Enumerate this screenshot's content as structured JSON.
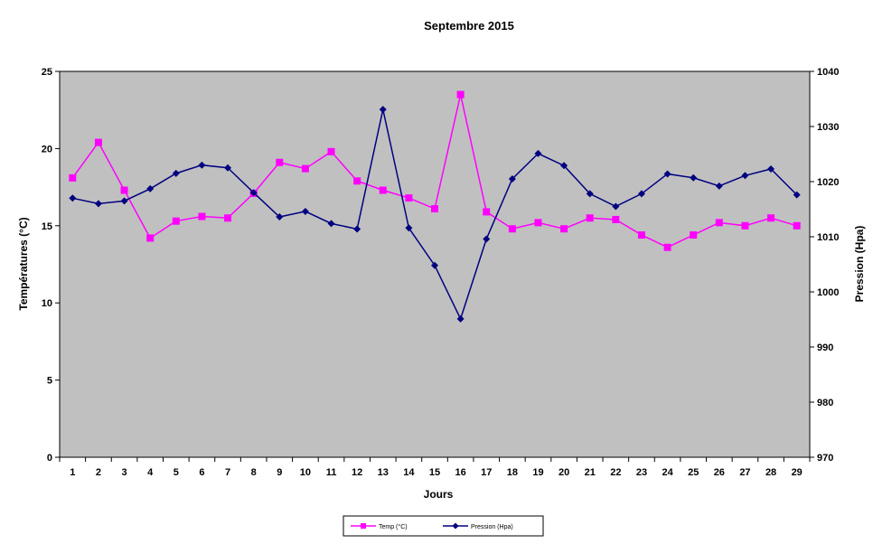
{
  "chart_data": {
    "type": "line",
    "title": "Septembre 2015",
    "xlabel": "Jours",
    "ylabel_left": "Températures (°C)",
    "ylabel_right": "Pression (Hpa)",
    "ylim_left": [
      0,
      25
    ],
    "ylim_right": [
      970,
      1040
    ],
    "yticks_left": [
      "0",
      "5",
      "10",
      "15",
      "20",
      "25"
    ],
    "yticks_right": [
      "970",
      "980",
      "990",
      "1000",
      "1010",
      "1020",
      "1030",
      "1040"
    ],
    "categories": [
      "1",
      "2",
      "3",
      "4",
      "5",
      "6",
      "7",
      "8",
      "9",
      "10",
      "11",
      "12",
      "13",
      "14",
      "15",
      "16",
      "17",
      "18",
      "19",
      "20",
      "21",
      "22",
      "23",
      "24",
      "25",
      "26",
      "27",
      "28",
      "29"
    ],
    "series": [
      {
        "name": "Temp (°C)",
        "axis": "left",
        "color": "#ff00ff",
        "marker": "square",
        "values": [
          18.1,
          20.4,
          17.3,
          14.2,
          15.3,
          15.6,
          15.5,
          17.1,
          19.1,
          18.7,
          19.8,
          17.9,
          17.3,
          16.8,
          16.1,
          23.5,
          15.9,
          14.8,
          15.2,
          14.8,
          15.5,
          15.4,
          14.4,
          13.6,
          14.4,
          15.2,
          15.0,
          15.5,
          15.0
        ]
      },
      {
        "name": "Pression (Hpa)",
        "axis": "right",
        "color": "#000080",
        "marker": "diamond",
        "values": [
          1017.0,
          1016.0,
          1016.5,
          1018.7,
          1021.5,
          1023.0,
          1022.5,
          1018.0,
          1013.6,
          1014.6,
          1012.4,
          1011.4,
          1033.1,
          1011.6,
          1004.8,
          995.1,
          1009.6,
          1020.5,
          1025.1,
          1022.9,
          1017.8,
          1015.5,
          1017.8,
          1021.4,
          1020.7,
          1019.2,
          1021.1,
          1022.3,
          1017.6
        ]
      }
    ],
    "grid": false,
    "legend": "bottom-center",
    "plot_background": "#c0c0c0"
  }
}
